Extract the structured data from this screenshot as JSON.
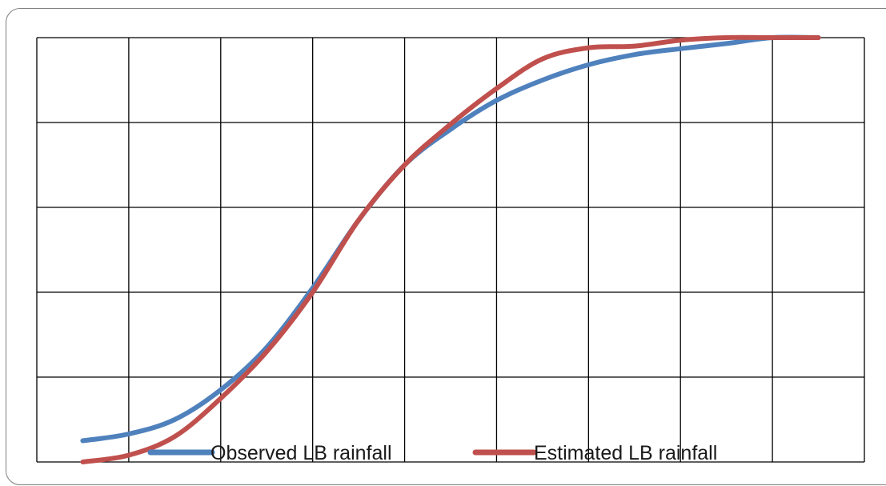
{
  "chart_data": {
    "type": "line",
    "title": "",
    "xlabel": "",
    "ylabel": "",
    "xlim": [
      0,
      9
    ],
    "ylim": [
      0,
      5
    ],
    "grid": true,
    "legend": "bottom-inside",
    "series": [
      {
        "name": "Observed LB rainfall",
        "color": "#4f81bd",
        "points": [
          [
            0.5,
            0.25
          ],
          [
            1.0,
            0.33
          ],
          [
            1.5,
            0.5
          ],
          [
            2.0,
            0.85
          ],
          [
            2.5,
            1.35
          ],
          [
            3.0,
            2.05
          ],
          [
            3.5,
            2.85
          ],
          [
            4.0,
            3.5
          ],
          [
            4.5,
            3.92
          ],
          [
            5.0,
            4.26
          ],
          [
            5.5,
            4.5
          ],
          [
            6.0,
            4.68
          ],
          [
            6.5,
            4.8
          ],
          [
            7.0,
            4.87
          ],
          [
            7.5,
            4.93
          ],
          [
            8.0,
            5.0
          ],
          [
            8.5,
            5.0
          ]
        ]
      },
      {
        "name": "Estimated LB rainfall",
        "color": "#c0504d",
        "points": [
          [
            0.5,
            0.0
          ],
          [
            1.0,
            0.08
          ],
          [
            1.5,
            0.3
          ],
          [
            2.0,
            0.75
          ],
          [
            2.5,
            1.3
          ],
          [
            3.0,
            2.0
          ],
          [
            3.5,
            2.85
          ],
          [
            4.0,
            3.5
          ],
          [
            4.5,
            3.98
          ],
          [
            5.0,
            4.4
          ],
          [
            5.5,
            4.75
          ],
          [
            6.0,
            4.88
          ],
          [
            6.5,
            4.9
          ],
          [
            7.0,
            4.97
          ],
          [
            7.5,
            5.0
          ],
          [
            8.0,
            5.0
          ],
          [
            8.5,
            5.0
          ]
        ]
      }
    ]
  }
}
